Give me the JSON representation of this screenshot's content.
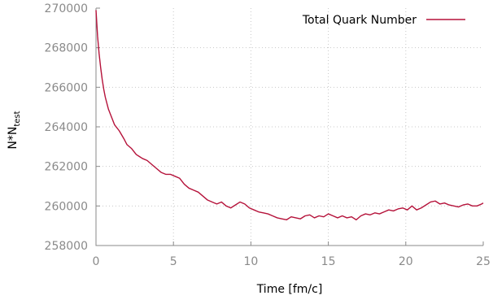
{
  "chart_data": {
    "type": "line",
    "title": "",
    "xlabel": "Time [fm/c]",
    "ylabel": "N*N",
    "ylabel_sub": "test",
    "xlim": [
      0,
      25
    ],
    "ylim": [
      258000,
      270000
    ],
    "x_ticks": [
      0,
      5,
      10,
      15,
      20,
      25
    ],
    "y_ticks": [
      258000,
      260000,
      262000,
      264000,
      266000,
      268000,
      270000
    ],
    "grid": true,
    "legend_position": "top-right",
    "series": [
      {
        "name": "Total Quark Number",
        "color": "#b5123a",
        "x": [
          0,
          0.1,
          0.2,
          0.3,
          0.4,
          0.5,
          0.6,
          0.8,
          1.0,
          1.2,
          1.5,
          1.8,
          2.0,
          2.3,
          2.6,
          2.8,
          3.0,
          3.3,
          3.6,
          3.9,
          4.2,
          4.5,
          4.8,
          5.1,
          5.4,
          5.7,
          6.0,
          6.3,
          6.6,
          6.9,
          7.2,
          7.5,
          7.8,
          8.1,
          8.4,
          8.7,
          9.0,
          9.3,
          9.6,
          9.9,
          10.2,
          10.5,
          10.8,
          11.1,
          11.4,
          11.7,
          12.0,
          12.3,
          12.6,
          12.9,
          13.2,
          13.5,
          13.8,
          14.1,
          14.4,
          14.7,
          15.0,
          15.3,
          15.6,
          15.9,
          16.2,
          16.5,
          16.8,
          17.1,
          17.4,
          17.7,
          18.0,
          18.3,
          18.6,
          18.9,
          19.2,
          19.5,
          19.8,
          20.1,
          20.4,
          20.7,
          21.0,
          21.3,
          21.6,
          21.9,
          22.2,
          22.5,
          22.8,
          23.1,
          23.4,
          23.7,
          24.0,
          24.3,
          24.6,
          24.9,
          25.0
        ],
        "y": [
          269900,
          268600,
          267700,
          267000,
          266400,
          265900,
          265500,
          264900,
          264500,
          264100,
          263800,
          263400,
          263100,
          262900,
          262600,
          262500,
          262400,
          262300,
          262100,
          261900,
          261700,
          261600,
          261600,
          261500,
          261400,
          261100,
          260900,
          260800,
          260700,
          260500,
          260300,
          260200,
          260100,
          260200,
          260000,
          259900,
          260050,
          260200,
          260100,
          259900,
          259800,
          259700,
          259650,
          259600,
          259500,
          259400,
          259350,
          259300,
          259450,
          259400,
          259350,
          259500,
          259550,
          259400,
          259500,
          259450,
          259600,
          259500,
          259400,
          259500,
          259400,
          259450,
          259300,
          259500,
          259600,
          259550,
          259650,
          259600,
          259700,
          259800,
          259750,
          259850,
          259900,
          259800,
          260000,
          259800,
          259900,
          260050,
          260200,
          260250,
          260100,
          260150,
          260050,
          260000,
          259950,
          260050,
          260100,
          260000,
          260000,
          260100,
          260150
        ]
      }
    ]
  }
}
